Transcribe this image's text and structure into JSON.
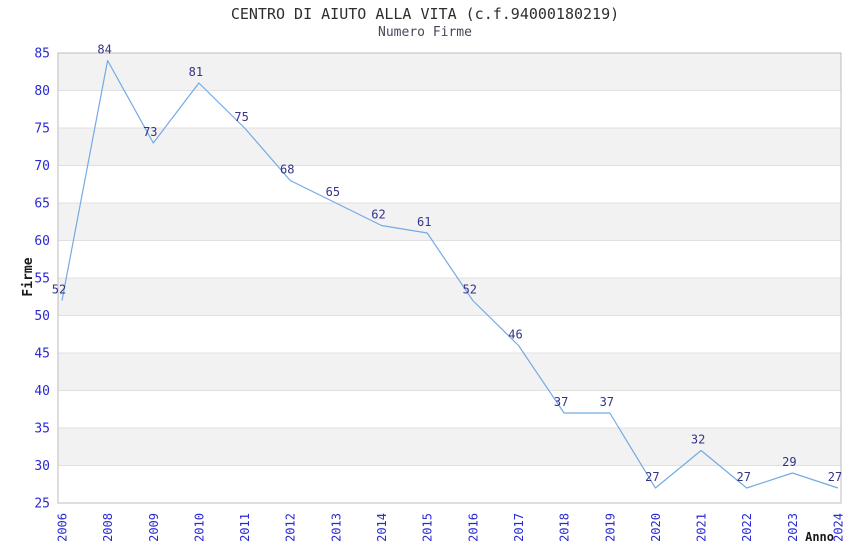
{
  "chart_data": {
    "type": "line",
    "title": "CENTRO DI AIUTO ALLA VITA (c.f.94000180219)",
    "subtitle": "Numero Firme",
    "xlabel": "Anno",
    "ylabel": "Firme",
    "categories": [
      "2006",
      "2008",
      "2009",
      "2010",
      "2011",
      "2012",
      "2013",
      "2014",
      "2015",
      "2016",
      "2017",
      "2018",
      "2019",
      "2020",
      "2021",
      "2022",
      "2023",
      "2024"
    ],
    "values": [
      52,
      84,
      73,
      81,
      75,
      68,
      65,
      62,
      61,
      52,
      46,
      37,
      37,
      27,
      32,
      27,
      29,
      27
    ],
    "ylim": [
      25,
      85
    ],
    "yticks": [
      25,
      30,
      35,
      40,
      45,
      50,
      55,
      60,
      65,
      70,
      75,
      80,
      85
    ],
    "grid": "horizontal-alternating-bands",
    "legend": "none",
    "data_labels_visible": true,
    "colors": {
      "line": "#74abe2",
      "data_labels": "#333388",
      "tick_labels": "#2a2ad4",
      "band": "#f2f2f2",
      "gridline": "#e0e0e0",
      "border": "#bdbdbd",
      "title": "#2e2e2e",
      "subtitle": "#48485c",
      "axis_title": "#1a1a1a"
    }
  }
}
